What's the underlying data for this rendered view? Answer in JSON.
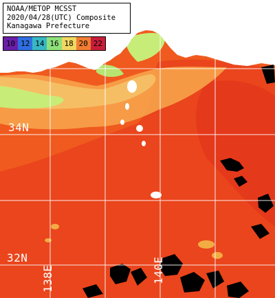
{
  "title": {
    "line1": "NOAA/METOP MCSST",
    "line2": "2020/04/28(UTC) Composite",
    "line3": "Kanagawa Prefecture"
  },
  "legend": {
    "items": [
      {
        "label": "10",
        "color": "#6a1fa8"
      },
      {
        "label": "12",
        "color": "#2f6ee0"
      },
      {
        "label": "14",
        "color": "#38b7c4"
      },
      {
        "label": "16",
        "color": "#8fe07a"
      },
      {
        "label": "18",
        "color": "#f0d860"
      },
      {
        "label": "20",
        "color": "#ef7d32"
      },
      {
        "label": "22",
        "color": "#c81e3a"
      }
    ]
  },
  "gridlines": {
    "latitude_labels": [
      "34N",
      "32N"
    ],
    "longitude_labels": [
      "138E",
      "140E"
    ]
  },
  "colors": {
    "land": "#ffffff",
    "coast_cool": "#c8ec78",
    "shelf_warm": "#f6b460",
    "sea_main": "#f05a1e",
    "sea_warm": "#e63a1a",
    "cloud_mask": "#000000",
    "grid": "#ffffff"
  }
}
